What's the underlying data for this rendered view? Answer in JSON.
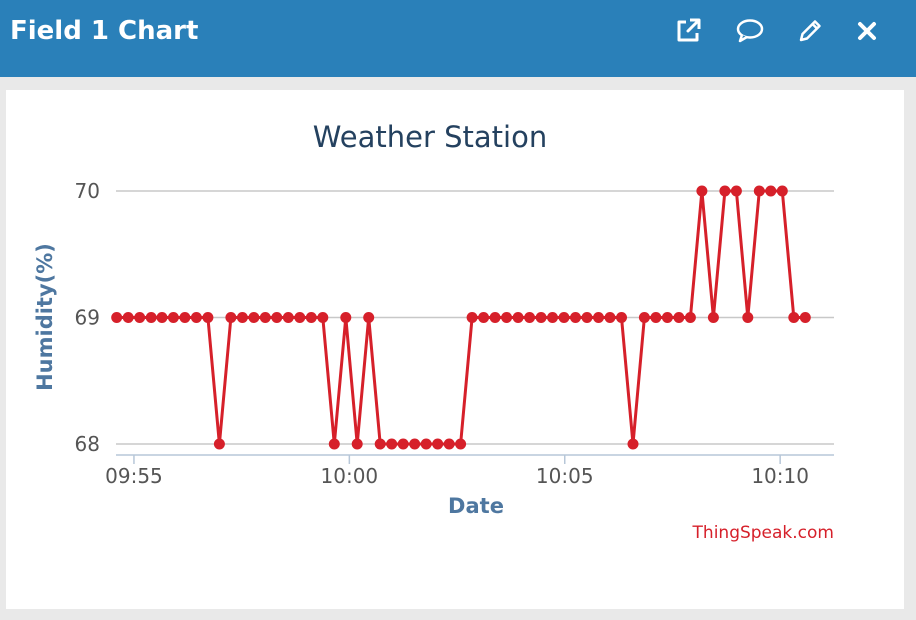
{
  "header": {
    "title": "Field 1 Chart",
    "buttons": [
      {
        "icon": "external-link-icon"
      },
      {
        "icon": "comment-icon"
      },
      {
        "icon": "pencil-icon"
      },
      {
        "icon": "close-icon"
      }
    ],
    "background": "#2a80b9"
  },
  "chart_data": {
    "type": "line",
    "title": "Weather Station",
    "xlabel": "Date",
    "ylabel": "Humidity(%)",
    "credit": "ThingSpeak.com",
    "x_ticks": [
      "09:55",
      "10:00",
      "10:05",
      "10:10"
    ],
    "y_ticks": [
      68,
      69,
      70
    ],
    "ylim": [
      68,
      70
    ],
    "xlim": [
      "09:54:35",
      "10:11:15"
    ],
    "grid": true,
    "series": [
      {
        "color": "#d6202a",
        "points": [
          {
            "x": "09:54:36",
            "y": 69
          },
          {
            "x": "09:54:52",
            "y": 69
          },
          {
            "x": "09:55:08",
            "y": 69
          },
          {
            "x": "09:55:24",
            "y": 69
          },
          {
            "x": "09:55:39",
            "y": 69
          },
          {
            "x": "09:55:55",
            "y": 69
          },
          {
            "x": "09:56:11",
            "y": 69
          },
          {
            "x": "09:56:27",
            "y": 69
          },
          {
            "x": "09:56:43",
            "y": 69
          },
          {
            "x": "09:56:59",
            "y": 68
          },
          {
            "x": "09:57:15",
            "y": 69
          },
          {
            "x": "09:57:31",
            "y": 69
          },
          {
            "x": "09:57:47",
            "y": 69
          },
          {
            "x": "09:58:03",
            "y": 69
          },
          {
            "x": "09:58:19",
            "y": 69
          },
          {
            "x": "09:58:35",
            "y": 69
          },
          {
            "x": "09:58:51",
            "y": 69
          },
          {
            "x": "09:59:07",
            "y": 69
          },
          {
            "x": "09:59:23",
            "y": 69
          },
          {
            "x": "09:59:39",
            "y": 68
          },
          {
            "x": "09:59:55",
            "y": 69
          },
          {
            "x": "10:00:11",
            "y": 68
          },
          {
            "x": "10:00:27",
            "y": 69
          },
          {
            "x": "10:00:43",
            "y": 68
          },
          {
            "x": "10:00:59",
            "y": 68
          },
          {
            "x": "10:01:15",
            "y": 68
          },
          {
            "x": "10:01:31",
            "y": 68
          },
          {
            "x": "10:01:47",
            "y": 68
          },
          {
            "x": "10:02:03",
            "y": 68
          },
          {
            "x": "10:02:19",
            "y": 68
          },
          {
            "x": "10:02:35",
            "y": 68
          },
          {
            "x": "10:02:51",
            "y": 69
          },
          {
            "x": "10:03:07",
            "y": 69
          },
          {
            "x": "10:03:23",
            "y": 69
          },
          {
            "x": "10:03:39",
            "y": 69
          },
          {
            "x": "10:03:55",
            "y": 69
          },
          {
            "x": "10:04:11",
            "y": 69
          },
          {
            "x": "10:04:27",
            "y": 69
          },
          {
            "x": "10:04:43",
            "y": 69
          },
          {
            "x": "10:04:59",
            "y": 69
          },
          {
            "x": "10:05:15",
            "y": 69
          },
          {
            "x": "10:05:31",
            "y": 69
          },
          {
            "x": "10:05:47",
            "y": 69
          },
          {
            "x": "10:06:03",
            "y": 69
          },
          {
            "x": "10:06:19",
            "y": 69
          },
          {
            "x": "10:06:35",
            "y": 68
          },
          {
            "x": "10:06:51",
            "y": 69
          },
          {
            "x": "10:07:07",
            "y": 69
          },
          {
            "x": "10:07:23",
            "y": 69
          },
          {
            "x": "10:07:39",
            "y": 69
          },
          {
            "x": "10:07:55",
            "y": 69
          },
          {
            "x": "10:08:11",
            "y": 70
          },
          {
            "x": "10:08:27",
            "y": 69
          },
          {
            "x": "10:08:43",
            "y": 70
          },
          {
            "x": "10:08:59",
            "y": 70
          },
          {
            "x": "10:09:15",
            "y": 69
          },
          {
            "x": "10:09:31",
            "y": 70
          },
          {
            "x": "10:09:47",
            "y": 70
          },
          {
            "x": "10:10:03",
            "y": 70
          },
          {
            "x": "10:10:19",
            "y": 69
          },
          {
            "x": "10:10:35",
            "y": 69
          }
        ]
      }
    ]
  }
}
